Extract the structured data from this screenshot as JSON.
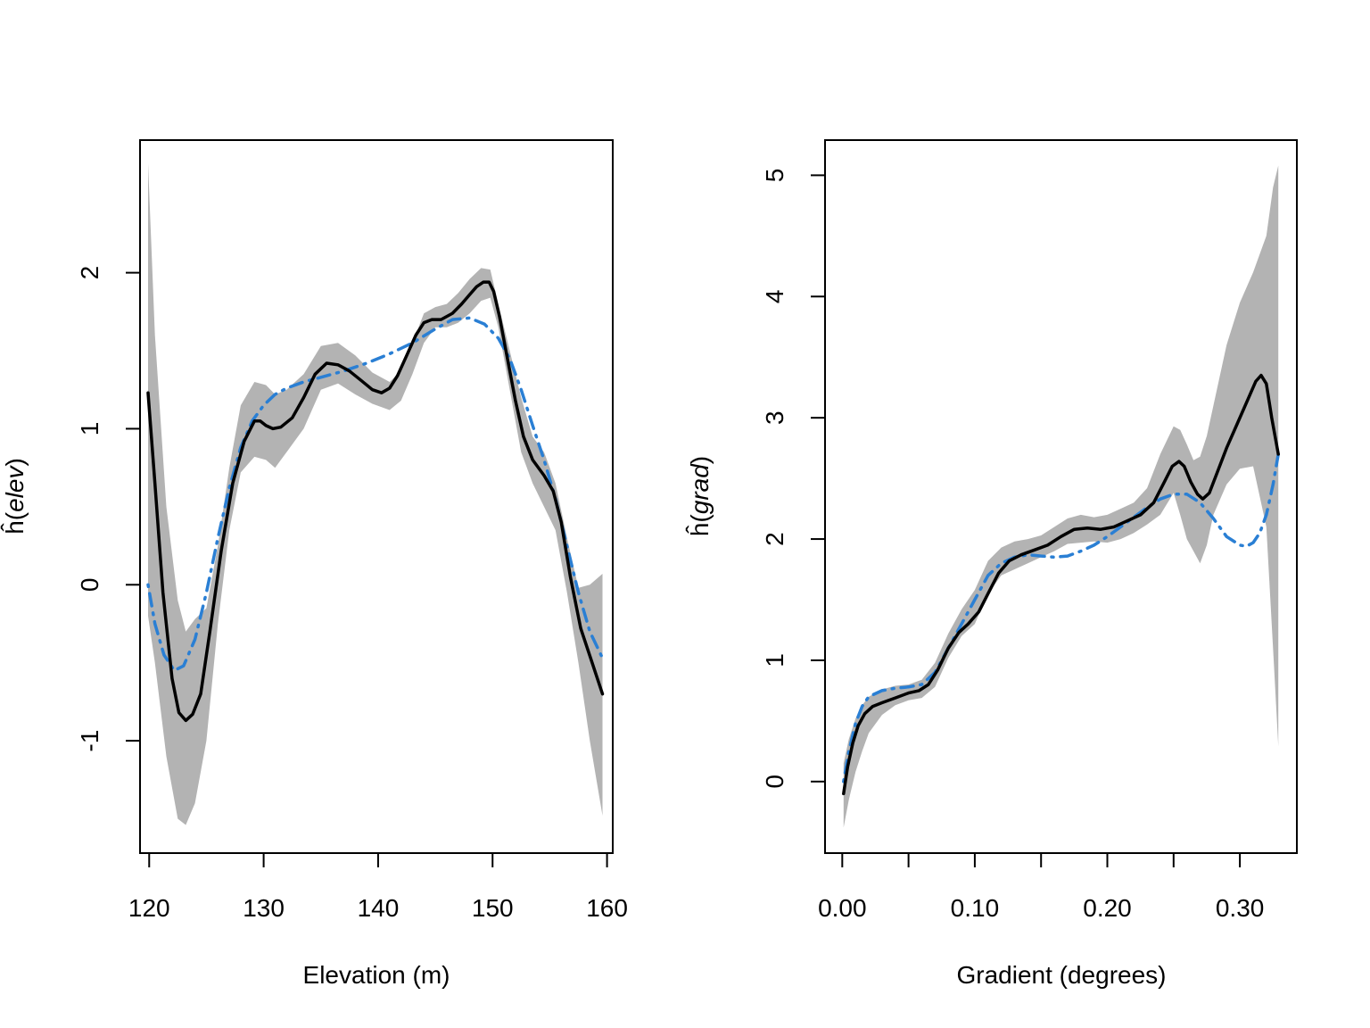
{
  "chart_data": [
    {
      "type": "line",
      "xlabel": "Elevation (m)",
      "ylabel": "ĥ(elev)",
      "ylabel_base": "ĥ(",
      "ylabel_var": "elev",
      "ylabel_close": ")",
      "xlim": [
        119.2,
        160.5
      ],
      "ylim": [
        -1.72,
        2.85
      ],
      "xticks": [
        120,
        130,
        140,
        150,
        160
      ],
      "xtick_labels": [
        "120",
        "130",
        "140",
        "150",
        "160"
      ],
      "yticks": [
        -1,
        0,
        1,
        2
      ],
      "ytick_labels": [
        "-1",
        "0",
        "1",
        "2"
      ],
      "colors": {
        "band": "#b3b3b3",
        "estimate": "#000000",
        "truth": "#2a7fd4"
      },
      "band": {
        "x": [
          119.9,
          120.5,
          121.5,
          122.5,
          123.2,
          124,
          125,
          126,
          127,
          128,
          129.2,
          130.2,
          131,
          132,
          133.5,
          135,
          136.5,
          138,
          139.5,
          141,
          142,
          143,
          144,
          145,
          146,
          147,
          148,
          149,
          149.8,
          150.5,
          151.5,
          152.5,
          153.5,
          154.5,
          155.5,
          156.5,
          157.5,
          158.5,
          159.6
        ],
        "upper": [
          2.7,
          1.6,
          0.5,
          -0.1,
          -0.3,
          -0.22,
          -0.15,
          0.25,
          0.75,
          1.15,
          1.3,
          1.28,
          1.22,
          1.25,
          1.35,
          1.53,
          1.55,
          1.47,
          1.36,
          1.3,
          1.37,
          1.55,
          1.74,
          1.78,
          1.8,
          1.87,
          1.96,
          2.03,
          2.02,
          1.8,
          1.5,
          1.2,
          0.95,
          0.85,
          0.65,
          0.3,
          -0.02,
          0.0,
          0.07
        ],
        "lower": [
          -0.2,
          -0.5,
          -1.1,
          -1.5,
          -1.54,
          -1.4,
          -1.0,
          -0.25,
          0.35,
          0.72,
          0.82,
          0.8,
          0.75,
          0.85,
          1.0,
          1.25,
          1.29,
          1.22,
          1.16,
          1.12,
          1.18,
          1.35,
          1.55,
          1.65,
          1.65,
          1.68,
          1.74,
          1.82,
          1.84,
          1.65,
          1.25,
          0.85,
          0.65,
          0.5,
          0.35,
          -0.05,
          -0.5,
          -1.0,
          -1.48
        ]
      },
      "series": [
        {
          "key": "estimate",
          "style": "solid",
          "x": [
            119.9,
            120.5,
            121.2,
            122,
            122.6,
            123.2,
            123.8,
            124.5,
            125.3,
            126.3,
            127.3,
            128.3,
            129.2,
            129.7,
            130.2,
            130.8,
            131.5,
            132.5,
            133.5,
            134.5,
            135.5,
            136.5,
            137.5,
            138.5,
            139.5,
            140.3,
            141,
            141.7,
            142.5,
            143.3,
            144,
            144.7,
            145.5,
            146.5,
            147.3,
            148,
            148.6,
            149.2,
            149.7,
            150.1,
            150.6,
            151.3,
            152,
            152.7,
            153.5,
            154.5,
            155.3,
            156,
            156.8,
            157.7,
            158.7,
            159.6
          ],
          "y": [
            1.23,
            0.65,
            -0.05,
            -0.6,
            -0.82,
            -0.87,
            -0.83,
            -0.7,
            -0.3,
            0.22,
            0.65,
            0.92,
            1.05,
            1.05,
            1.02,
            1.0,
            1.01,
            1.07,
            1.2,
            1.35,
            1.42,
            1.41,
            1.37,
            1.31,
            1.25,
            1.23,
            1.26,
            1.34,
            1.47,
            1.6,
            1.68,
            1.7,
            1.7,
            1.74,
            1.8,
            1.86,
            1.91,
            1.94,
            1.94,
            1.88,
            1.72,
            1.45,
            1.18,
            0.95,
            0.8,
            0.7,
            0.6,
            0.4,
            0.05,
            -0.28,
            -0.5,
            -0.7
          ]
        },
        {
          "key": "truth",
          "style": "dotdash",
          "x": [
            119.9,
            120.5,
            121.3,
            122.2,
            123,
            124,
            125,
            126,
            127,
            128,
            129,
            130,
            131,
            132,
            133.5,
            135,
            137,
            139,
            141,
            143,
            145,
            146.5,
            148,
            149.3,
            150.5,
            151.5,
            152.5,
            153.5,
            154.5,
            155.5,
            156.5,
            157.5,
            158.5,
            159.6
          ],
          "y": [
            0.0,
            -0.25,
            -0.45,
            -0.55,
            -0.52,
            -0.35,
            -0.05,
            0.3,
            0.62,
            0.88,
            1.05,
            1.15,
            1.22,
            1.26,
            1.3,
            1.33,
            1.37,
            1.42,
            1.48,
            1.55,
            1.64,
            1.7,
            1.71,
            1.67,
            1.58,
            1.45,
            1.25,
            1.02,
            0.8,
            0.55,
            0.25,
            -0.05,
            -0.3,
            -0.47
          ]
        }
      ]
    },
    {
      "type": "line",
      "xlabel": "Gradient (degrees)",
      "ylabel": "ĥ(grad)",
      "ylabel_base": "ĥ(",
      "ylabel_var": "grad",
      "ylabel_close": ")",
      "xlim": [
        -0.013,
        0.343
      ],
      "ylim": [
        -0.59,
        5.29
      ],
      "xticks": [
        0.0,
        0.05,
        0.1,
        0.15,
        0.2,
        0.25,
        0.3
      ],
      "xtick_labels": [
        "0.00",
        "",
        "0.10",
        "",
        "0.20",
        "",
        "0.30"
      ],
      "yticks": [
        0,
        1,
        2,
        3,
        4,
        5
      ],
      "ytick_labels": [
        "0",
        "1",
        "2",
        "3",
        "4",
        "5"
      ],
      "colors": {
        "band": "#b3b3b3",
        "estimate": "#000000",
        "truth": "#2a7fd4"
      },
      "band": {
        "x": [
          0.001,
          0.005,
          0.01,
          0.015,
          0.02,
          0.03,
          0.04,
          0.05,
          0.06,
          0.07,
          0.08,
          0.09,
          0.1,
          0.11,
          0.12,
          0.13,
          0.14,
          0.15,
          0.16,
          0.17,
          0.18,
          0.19,
          0.2,
          0.21,
          0.22,
          0.23,
          0.24,
          0.25,
          0.255,
          0.26,
          0.265,
          0.27,
          0.275,
          0.28,
          0.29,
          0.3,
          0.31,
          0.32,
          0.325,
          0.329
        ],
        "upper": [
          0.15,
          0.35,
          0.52,
          0.63,
          0.7,
          0.76,
          0.79,
          0.8,
          0.84,
          0.98,
          1.22,
          1.42,
          1.58,
          1.82,
          1.93,
          1.98,
          2.0,
          2.03,
          2.1,
          2.17,
          2.2,
          2.18,
          2.2,
          2.25,
          2.3,
          2.42,
          2.7,
          2.93,
          2.9,
          2.78,
          2.65,
          2.68,
          2.85,
          3.1,
          3.6,
          3.95,
          4.2,
          4.5,
          4.9,
          5.08
        ],
        "lower": [
          -0.38,
          -0.15,
          0.08,
          0.25,
          0.4,
          0.55,
          0.63,
          0.67,
          0.69,
          0.78,
          1.02,
          1.2,
          1.3,
          1.55,
          1.7,
          1.75,
          1.8,
          1.85,
          1.9,
          1.96,
          1.97,
          1.98,
          1.97,
          2.0,
          2.05,
          2.12,
          2.2,
          2.38,
          2.2,
          2.0,
          1.9,
          1.8,
          1.95,
          2.2,
          2.45,
          2.58,
          2.6,
          2.1,
          1.1,
          0.29
        ]
      },
      "series": [
        {
          "key": "estimate",
          "style": "solid",
          "x": [
            0.001,
            0.004,
            0.008,
            0.012,
            0.017,
            0.023,
            0.03,
            0.04,
            0.05,
            0.058,
            0.065,
            0.072,
            0.08,
            0.088,
            0.095,
            0.103,
            0.11,
            0.118,
            0.126,
            0.135,
            0.145,
            0.155,
            0.165,
            0.175,
            0.185,
            0.195,
            0.205,
            0.215,
            0.225,
            0.235,
            0.243,
            0.249,
            0.254,
            0.258,
            0.263,
            0.268,
            0.272,
            0.277,
            0.283,
            0.29,
            0.298,
            0.306,
            0.312,
            0.316,
            0.32,
            0.324,
            0.329
          ],
          "y": [
            -0.1,
            0.12,
            0.32,
            0.46,
            0.56,
            0.62,
            0.65,
            0.69,
            0.73,
            0.75,
            0.8,
            0.92,
            1.1,
            1.23,
            1.3,
            1.4,
            1.55,
            1.72,
            1.82,
            1.87,
            1.91,
            1.95,
            2.02,
            2.08,
            2.09,
            2.08,
            2.1,
            2.15,
            2.2,
            2.3,
            2.47,
            2.6,
            2.64,
            2.6,
            2.47,
            2.37,
            2.33,
            2.38,
            2.55,
            2.75,
            2.95,
            3.15,
            3.3,
            3.35,
            3.28,
            3.0,
            2.7
          ]
        },
        {
          "key": "truth",
          "style": "dotdash",
          "x": [
            0.001,
            0.005,
            0.01,
            0.015,
            0.02,
            0.03,
            0.04,
            0.05,
            0.06,
            0.07,
            0.08,
            0.09,
            0.1,
            0.11,
            0.12,
            0.13,
            0.14,
            0.15,
            0.16,
            0.17,
            0.18,
            0.19,
            0.2,
            0.21,
            0.22,
            0.23,
            0.24,
            0.25,
            0.26,
            0.27,
            0.28,
            0.29,
            0.3,
            0.305,
            0.31,
            0.315,
            0.32,
            0.325,
            0.329
          ],
          "y": [
            0.0,
            0.25,
            0.48,
            0.62,
            0.7,
            0.75,
            0.77,
            0.78,
            0.8,
            0.9,
            1.1,
            1.3,
            1.5,
            1.7,
            1.8,
            1.85,
            1.87,
            1.86,
            1.85,
            1.86,
            1.9,
            1.95,
            2.02,
            2.1,
            2.18,
            2.26,
            2.33,
            2.37,
            2.37,
            2.3,
            2.17,
            2.02,
            1.95,
            1.94,
            1.97,
            2.05,
            2.2,
            2.45,
            2.7
          ]
        }
      ]
    }
  ]
}
